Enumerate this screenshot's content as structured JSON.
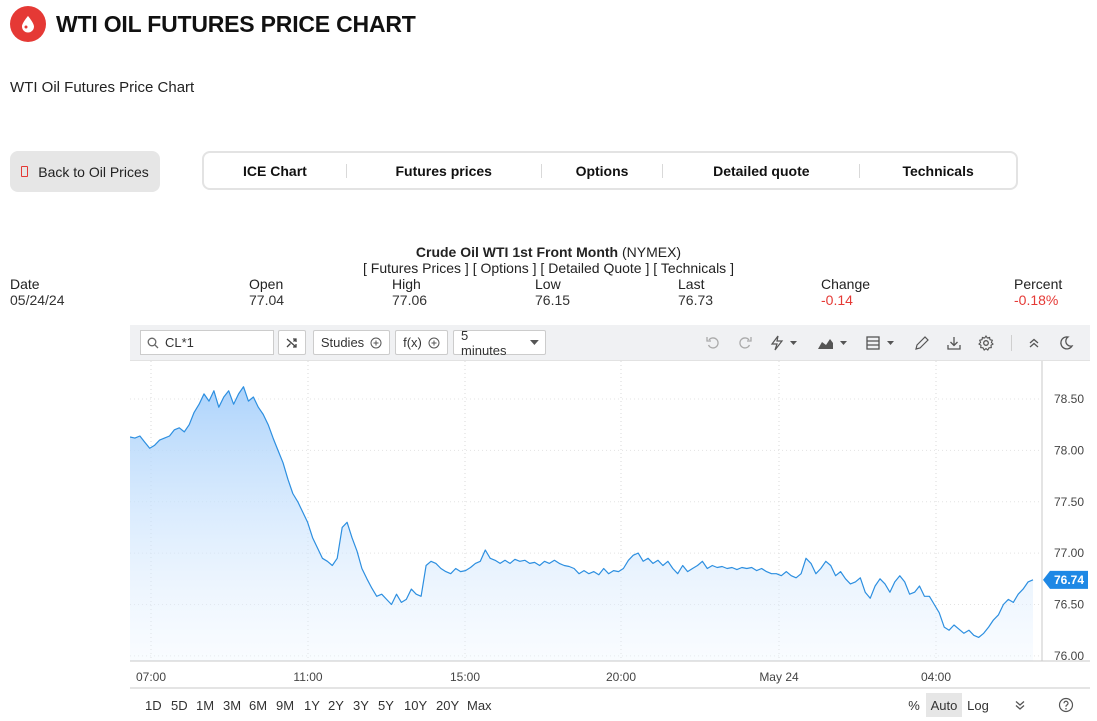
{
  "header": {
    "title": "WTI OIL FUTURES PRICE CHART",
    "icon": "oil-drop-icon",
    "brand_color": "#e53935"
  },
  "subtitle": "WTI Oil Futures Price Chart",
  "back_button": {
    "label": "Back to Oil Prices"
  },
  "tabs": [
    {
      "label": "ICE Chart"
    },
    {
      "label": "Futures prices"
    },
    {
      "label": "Options"
    },
    {
      "label": "Detailed quote"
    },
    {
      "label": "Technicals"
    }
  ],
  "quote": {
    "name": "Crude Oil WTI 1st Front Month",
    "exchange": "(NYMEX)",
    "links": [
      "Futures Prices",
      "Options",
      "Detailed Quote",
      "Technicals"
    ],
    "stats": {
      "date": {
        "label": "Date",
        "value": "05/24/24"
      },
      "open": {
        "label": "Open",
        "value": "77.04"
      },
      "high": {
        "label": "High",
        "value": "77.06"
      },
      "low": {
        "label": "Low",
        "value": "76.15"
      },
      "last": {
        "label": "Last",
        "value": "76.73"
      },
      "change": {
        "label": "Change",
        "value": "-0.14"
      },
      "percent": {
        "label": "Percent",
        "value": "-0.18%"
      }
    },
    "negative_color": "#e53935"
  },
  "toolbar": {
    "symbol": "CL*1",
    "studies_label": "Studies",
    "fx_label": "f(x)",
    "interval": "5 minutes",
    "icons": [
      "undo-icon",
      "redo-icon",
      "lightning-icon",
      "chart-type-icon",
      "layout-icon",
      "pencil-icon",
      "download-icon",
      "gear-icon",
      "collapse-icon",
      "moon-icon"
    ]
  },
  "chart_data": {
    "type": "area",
    "xlabel": "",
    "ylabel": "",
    "x_ticks": [
      "07:00",
      "11:00",
      "15:00",
      "20:00",
      "May 24",
      "04:00"
    ],
    "y_ticks": [
      "78.50",
      "78.00",
      "77.50",
      "77.00",
      "76.50",
      "76.00"
    ],
    "ylim": [
      75.95,
      78.87
    ],
    "grid": true,
    "line_color": "#2d8fe0",
    "last_price": "76.74",
    "series": [
      {
        "values": [
          78.13,
          78.12,
          78.14,
          78.08,
          78.02,
          78.05,
          78.1,
          78.12,
          78.14,
          78.2,
          78.22,
          78.18,
          78.25,
          78.37,
          78.45,
          78.55,
          78.48,
          78.58,
          78.42,
          78.52,
          78.58,
          78.45,
          78.55,
          78.62,
          78.48,
          78.52,
          78.42,
          78.35,
          78.25,
          78.12,
          78.0,
          77.88,
          77.72,
          77.58,
          77.5,
          77.4,
          77.3,
          77.15,
          77.05,
          76.95,
          76.92,
          76.88,
          76.95,
          77.25,
          77.3,
          77.15,
          77.02,
          76.85,
          76.75,
          76.66,
          76.58,
          76.6,
          76.55,
          76.5,
          76.6,
          76.52,
          76.55,
          76.65,
          76.6,
          76.58,
          76.88,
          76.92,
          76.9,
          76.85,
          76.82,
          76.8,
          76.85,
          76.82,
          76.83,
          76.86,
          76.9,
          76.92,
          77.03,
          76.95,
          76.93,
          76.9,
          76.93,
          76.9,
          76.94,
          76.92,
          76.93,
          76.9,
          76.91,
          76.88,
          76.92,
          76.9,
          76.93,
          76.9,
          76.88,
          76.87,
          76.85,
          76.8,
          76.83,
          76.8,
          76.82,
          76.79,
          76.85,
          76.8,
          76.83,
          76.82,
          76.85,
          76.93,
          76.98,
          77.0,
          76.92,
          76.95,
          76.9,
          76.93,
          76.88,
          76.92,
          76.85,
          76.8,
          76.88,
          76.82,
          76.85,
          76.88,
          76.92,
          76.85,
          76.88,
          76.86,
          76.87,
          76.85,
          76.86,
          76.84,
          76.86,
          76.85,
          76.86,
          76.83,
          76.85,
          76.82,
          76.8,
          76.8,
          76.78,
          76.82,
          76.78,
          76.76,
          76.8,
          76.95,
          76.9,
          76.8,
          76.85,
          76.92,
          76.88,
          76.78,
          76.82,
          76.75,
          76.7,
          76.72,
          76.76,
          76.62,
          76.56,
          76.68,
          76.75,
          76.7,
          76.62,
          76.72,
          76.78,
          76.72,
          76.6,
          76.62,
          76.68,
          76.58,
          76.58,
          76.5,
          76.42,
          76.28,
          76.25,
          76.3,
          76.26,
          76.22,
          76.25,
          76.2,
          76.18,
          76.22,
          76.28,
          76.35,
          76.4,
          76.5,
          76.55,
          76.52,
          76.6,
          76.65,
          76.72,
          76.74
        ]
      }
    ]
  },
  "periods": [
    "1D",
    "5D",
    "1M",
    "3M",
    "6M",
    "9M",
    "1Y",
    "2Y",
    "3Y",
    "5Y",
    "10Y",
    "20Y",
    "Max"
  ],
  "scale_options": {
    "percent": "%",
    "auto": "Auto",
    "log": "Log"
  }
}
